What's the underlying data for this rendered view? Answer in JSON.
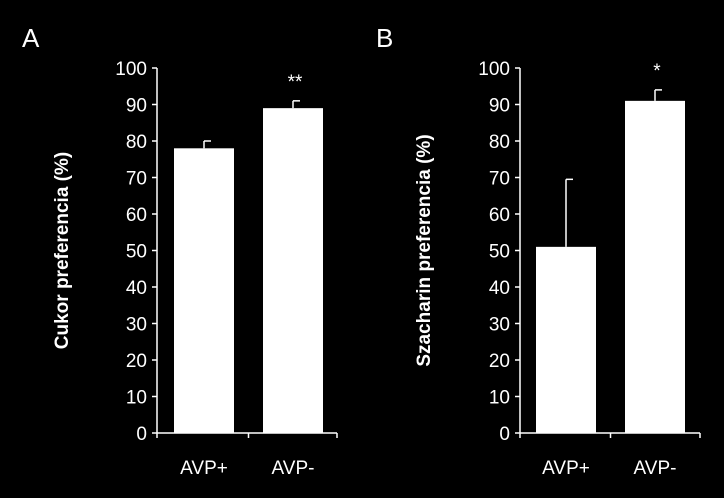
{
  "background": "#000000",
  "foreground": "#ffffff",
  "chart_data": [
    {
      "type": "bar",
      "panel_label": "A",
      "ylabel": "Cukor preferencia (%)",
      "categories": [
        "AVP+",
        "AVP-"
      ],
      "values": [
        78,
        89
      ],
      "errors": [
        2,
        2
      ],
      "significance": [
        "",
        "**"
      ],
      "ylim": [
        0,
        100
      ],
      "yticks": [
        0,
        10,
        20,
        30,
        40,
        50,
        60,
        70,
        80,
        90,
        100
      ],
      "bar_color": "#ffffff",
      "grid": false
    },
    {
      "type": "bar",
      "panel_label": "B",
      "ylabel": "Szacharin preferencia (%)",
      "categories": [
        "AVP+",
        "AVP-"
      ],
      "values": [
        51,
        91
      ],
      "errors": [
        18.5,
        3
      ],
      "significance": [
        "",
        "*"
      ],
      "ylim": [
        0,
        100
      ],
      "yticks": [
        0,
        10,
        20,
        30,
        40,
        50,
        60,
        70,
        80,
        90,
        100
      ],
      "bar_color": "#ffffff",
      "grid": false
    }
  ]
}
